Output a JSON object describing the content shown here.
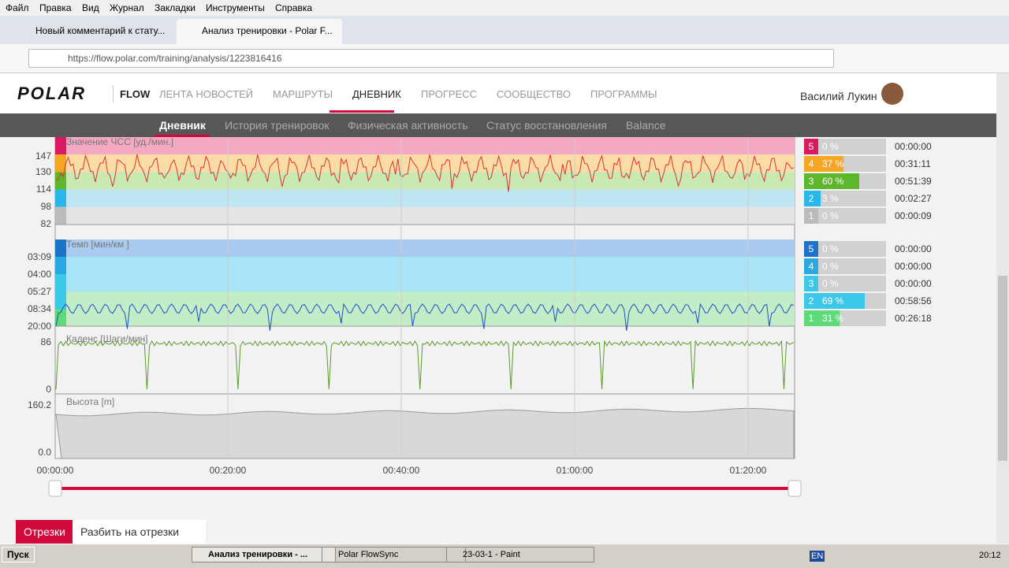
{
  "menu": [
    "Файл",
    "Правка",
    "Вид",
    "Журнал",
    "Закладки",
    "Инструменты",
    "Справка"
  ],
  "tabs": [
    "Новый комментарий к стату...",
    "Анализ тренировки - Polar F..."
  ],
  "url": "https://flow.polar.com/training/analysis/1223816416",
  "header": {
    "brand": "POLAR",
    "product": "FLOW",
    "nav": [
      "ЛЕНТА НОВОСТЕЙ",
      "МАРШРУТЫ",
      "ДНЕВНИК",
      "ПРОГРЕСС",
      "СООБЩЕСТВО",
      "ПРОГРАММЫ"
    ],
    "user": "Василий Лукин"
  },
  "subnav": [
    "Дневник",
    "История тренировок",
    "Физическая активность",
    "Статус восстановления",
    "Balance"
  ],
  "panels": [
    {
      "label": "Значение ЧСС [уд./мин.]",
      "ticks": [
        "147",
        "130",
        "114",
        "98",
        "82"
      ]
    },
    {
      "label": "Темп [мин/км ]",
      "ticks": [
        "03:09",
        "04:00",
        "05:27",
        "08:34",
        "20:00"
      ]
    },
    {
      "label": "Каденс [Шаги/мин]",
      "ticks": [
        "86",
        "0"
      ]
    },
    {
      "label": "Высота [m]",
      "ticks": [
        "160.2",
        "0.0"
      ]
    }
  ],
  "time_axis": [
    "00:00:00",
    "00:20:00",
    "00:40:00",
    "01:00:00",
    "01:20:00"
  ],
  "hr_zones": [
    {
      "zone": "5",
      "pct": {
        "value": 0,
        "label": "0 %"
      },
      "time": "00:00:00"
    },
    {
      "zone": "4",
      "pct": {
        "value": 37,
        "label": "37 %"
      },
      "time": "00:31:11"
    },
    {
      "zone": "3",
      "pct": {
        "value": 60,
        "label": "60 %"
      },
      "time": "00:51:39"
    },
    {
      "zone": "2",
      "pct": {
        "value": 3,
        "label": "3 %"
      },
      "time": "00:02:27"
    },
    {
      "zone": "1",
      "pct": {
        "value": 0,
        "label": "0 %"
      },
      "time": "00:00:09"
    }
  ],
  "pace_zones": [
    {
      "zone": "5",
      "pct": {
        "value": 0,
        "label": "0 %"
      },
      "time": "00:00:00"
    },
    {
      "zone": "4",
      "pct": {
        "value": 0,
        "label": "0 %"
      },
      "time": "00:00:00"
    },
    {
      "zone": "3",
      "pct": {
        "value": 0,
        "label": "0 %"
      },
      "time": "00:00:00"
    },
    {
      "zone": "2",
      "pct": {
        "value": 69,
        "label": "69 %"
      },
      "time": "00:58:56"
    },
    {
      "zone": "1",
      "pct": {
        "value": 31,
        "label": "31 %"
      },
      "time": "00:26:18"
    }
  ],
  "buttons": [
    "Отрезки",
    "Разбить на отрезки"
  ],
  "taskbar": {
    "start": "Пуск",
    "tasks": [
      "Анализ тренировки - ...",
      "Polar FlowSync",
      "23-03-1 - Paint"
    ],
    "lang": "EN",
    "clock": "20:12"
  }
}
